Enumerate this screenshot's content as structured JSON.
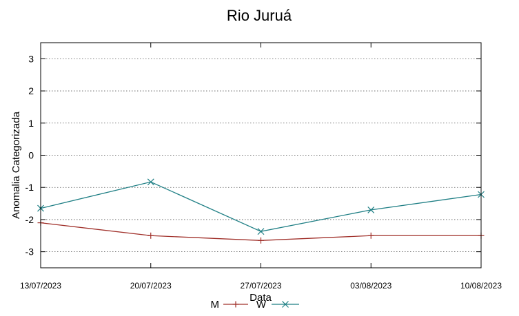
{
  "chart_data": {
    "type": "line",
    "title": "Rio Juruá",
    "xlabel": "Data",
    "ylabel": "Anomalia Categorizada",
    "x": [
      "13/07/2023",
      "20/07/2023",
      "27/07/2023",
      "03/08/2023",
      "10/08/2023"
    ],
    "ylim": [
      -3.5,
      3.5
    ],
    "yticks": [
      "3",
      "2",
      "1",
      "0",
      "-1",
      "-2",
      "-3"
    ],
    "grid": "horizontal dotted",
    "legend": "bottom-center",
    "series": [
      {
        "name": "M",
        "color": "#a0302a",
        "marker": "plus",
        "values": [
          -2.1,
          -2.5,
          -2.65,
          -2.5,
          -2.5
        ]
      },
      {
        "name": "W",
        "color": "#1f7f85",
        "marker": "cross",
        "values": [
          -1.65,
          -0.83,
          -2.37,
          -1.7,
          -1.22
        ]
      }
    ]
  }
}
